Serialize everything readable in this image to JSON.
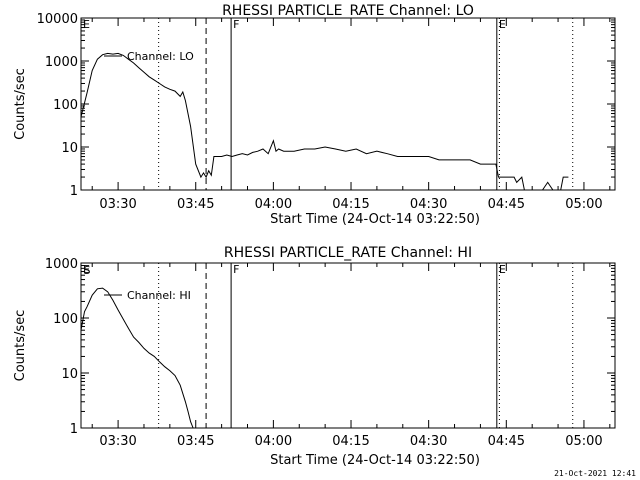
{
  "footer_timestamp": "21-Oct-2021 12:41",
  "chart_data": [
    {
      "type": "line",
      "title": "RHESSI PARTICLE_RATE Channel: LO",
      "legend": "Channel: LO",
      "xlabel": "Start Time (24-Oct-14 03:22:50)",
      "ylabel": "Counts/sec",
      "yscale": "log",
      "ylim": [
        1,
        10000
      ],
      "ytick_labels": [
        "1",
        "10",
        "100",
        "1000",
        "10000"
      ],
      "xlim": [
        "03:22:50",
        "05:06:00"
      ],
      "xtick_labels": [
        "03:30",
        "03:45",
        "04:00",
        "04:15",
        "04:30",
        "04:45",
        "05:00"
      ],
      "event_lines": [
        {
          "style": "dotted",
          "time": "03:37:50"
        },
        {
          "style": "dashed",
          "time": "03:47:00"
        },
        {
          "style": "solid",
          "time": "03:51:50",
          "label": "F"
        },
        {
          "style": "solid",
          "time": "04:43:10",
          "label": "E"
        },
        {
          "style": "dotted",
          "time": "04:43:40"
        },
        {
          "style": "dotted",
          "time": "04:57:50"
        }
      ],
      "corner_labels": [
        "E"
      ],
      "x": [
        "03:22:50",
        "03:24:00",
        "03:25:00",
        "03:26:00",
        "03:27:00",
        "03:28:00",
        "03:29:00",
        "03:30:00",
        "03:31:00",
        "03:32:00",
        "03:33:00",
        "03:34:00",
        "03:35:00",
        "03:36:00",
        "03:37:00",
        "03:38:00",
        "03:39:00",
        "03:40:00",
        "03:41:00",
        "03:42:00",
        "03:42:30",
        "03:43:00",
        "03:44:00",
        "03:45:00",
        "03:46:00",
        "03:46:30",
        "03:47:00",
        "03:47:30",
        "03:48:00",
        "03:48:30",
        "03:49:00",
        "03:50:00",
        "03:51:00",
        "03:52:00",
        "03:53:00",
        "03:54:00",
        "03:55:00",
        "03:56:00",
        "03:57:00",
        "03:58:00",
        "03:59:00",
        "04:00:00",
        "04:00:30",
        "04:01:00",
        "04:02:00",
        "04:03:00",
        "04:04:00",
        "04:06:00",
        "04:08:00",
        "04:10:00",
        "04:12:00",
        "04:14:00",
        "04:16:00",
        "04:18:00",
        "04:20:00",
        "04:22:00",
        "04:24:00",
        "04:26:00",
        "04:28:00",
        "04:30:00",
        "04:32:00",
        "04:34:00",
        "04:36:00",
        "04:38:00",
        "04:40:00",
        "04:42:00",
        "04:43:00",
        "04:43:30",
        "04:45:00",
        "04:46:30",
        "04:47:00",
        "04:48:00",
        "04:48:30",
        "04:49:00",
        "04:52:00",
        "04:53:00",
        "04:54:00",
        "04:55:00",
        "04:55:30",
        "04:56:00",
        "04:57:00"
      ],
      "values": [
        50,
        180,
        600,
        1100,
        1400,
        1500,
        1450,
        1500,
        1350,
        1100,
        900,
        700,
        550,
        430,
        360,
        300,
        250,
        220,
        200,
        150,
        190,
        120,
        30,
        4,
        2,
        2.5,
        2,
        2.8,
        2.2,
        6,
        6,
        6,
        6.5,
        6,
        6.5,
        7,
        6.5,
        7.5,
        8,
        9,
        7,
        14,
        8,
        9,
        8,
        8,
        8,
        9,
        9,
        10,
        9,
        8,
        9,
        7,
        8,
        7,
        6,
        6,
        6,
        6,
        5,
        5,
        5,
        5,
        4,
        4,
        4,
        2,
        2,
        2,
        1.5,
        2,
        1,
        1,
        1,
        1.5,
        1,
        1,
        1,
        2,
        2
      ]
    },
    {
      "type": "line",
      "title": "RHESSI PARTICLE_RATE Channel: HI",
      "legend": "Channel: HI",
      "xlabel": "Start Time (24-Oct-14 03:22:50)",
      "ylabel": "Counts/sec",
      "yscale": "log",
      "ylim": [
        1,
        1000
      ],
      "ytick_labels": [
        "1",
        "10",
        "100",
        "1000"
      ],
      "xlim": [
        "03:22:50",
        "05:06:00"
      ],
      "xtick_labels": [
        "03:30",
        "03:45",
        "04:00",
        "04:15",
        "04:30",
        "04:45",
        "05:00"
      ],
      "event_lines": [
        {
          "style": "dotted",
          "time": "03:37:50"
        },
        {
          "style": "dashed",
          "time": "03:47:00"
        },
        {
          "style": "solid",
          "time": "03:51:50",
          "label": "F"
        },
        {
          "style": "solid",
          "time": "04:43:10",
          "label": "E"
        },
        {
          "style": "dotted",
          "time": "04:43:40"
        },
        {
          "style": "dotted",
          "time": "04:57:50"
        }
      ],
      "corner_labels": [
        "E",
        "S"
      ],
      "x": [
        "03:22:50",
        "03:23:30",
        "03:24:00",
        "03:25:00",
        "03:26:00",
        "03:27:00",
        "03:28:00",
        "03:29:00",
        "03:30:00",
        "03:31:00",
        "03:32:00",
        "03:33:00",
        "03:34:00",
        "03:35:00",
        "03:36:00",
        "03:37:00",
        "03:38:00",
        "03:39:00",
        "03:40:00",
        "03:41:00",
        "03:42:00",
        "03:43:00",
        "03:43:30",
        "03:44:00",
        "03:44:30"
      ],
      "values": [
        60,
        130,
        160,
        260,
        340,
        350,
        300,
        210,
        140,
        95,
        65,
        45,
        36,
        28,
        23,
        20,
        16,
        13,
        11,
        9,
        6,
        3,
        2,
        1.3,
        1
      ]
    }
  ]
}
